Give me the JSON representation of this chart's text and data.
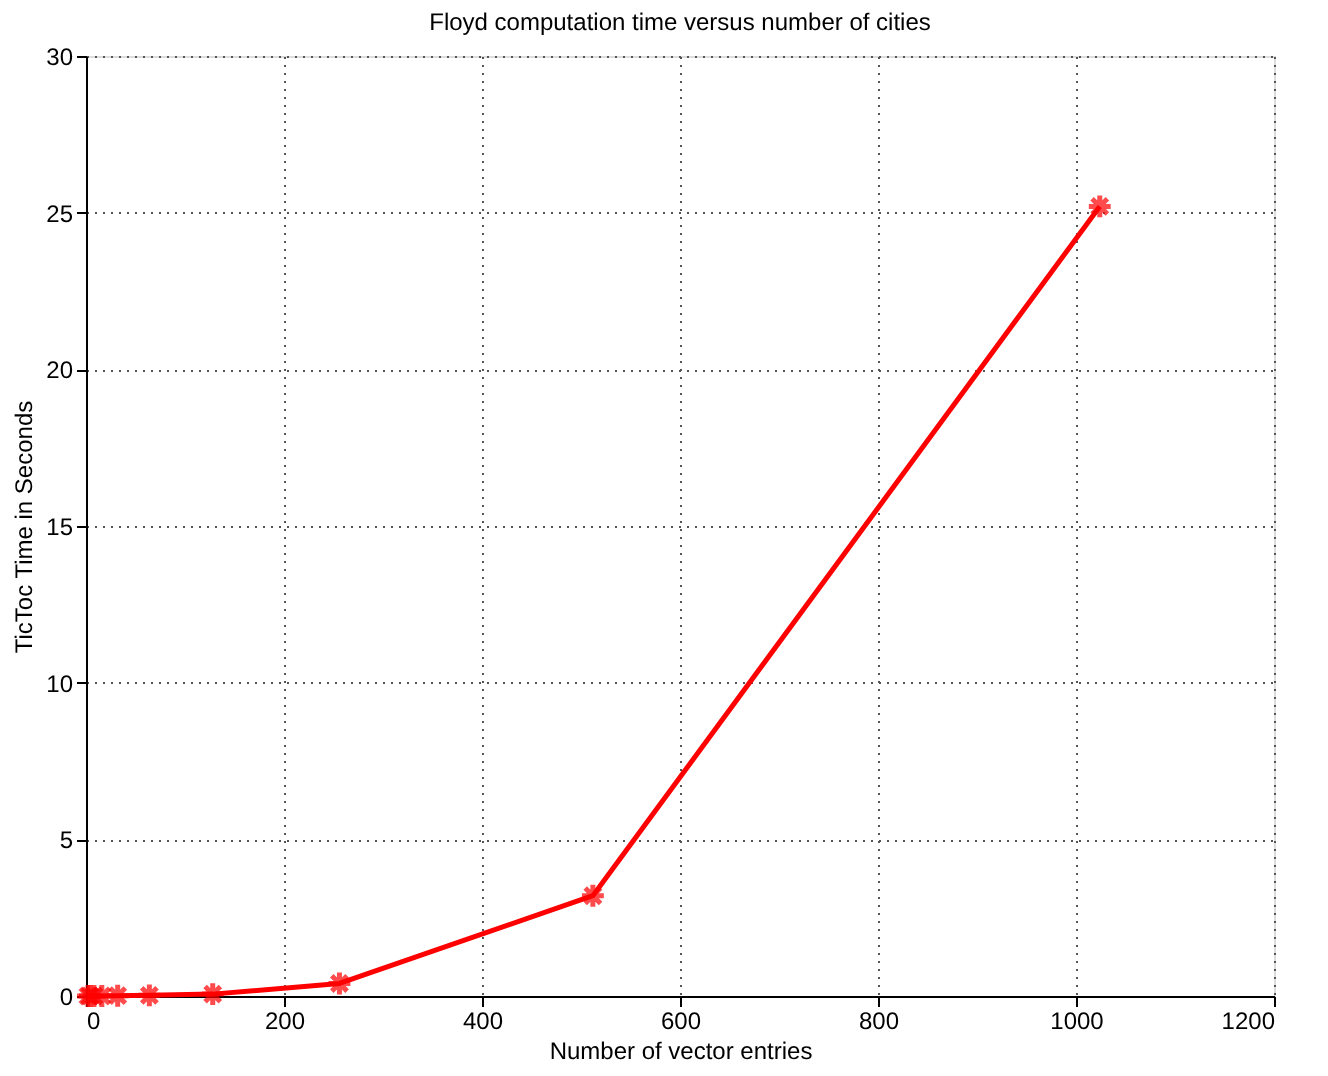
{
  "chart_data": {
    "type": "line",
    "title": "Floyd computation time versus number of cities",
    "xlabel": "Number of vector entries",
    "ylabel": "TicToc Time in Seconds",
    "x": [
      2,
      4,
      8,
      16,
      32,
      64,
      128,
      256,
      512,
      1024
    ],
    "series": [
      {
        "color": "#ff0000",
        "values": [
          0.0,
          0.0,
          0.0,
          0.0,
          0.01,
          0.02,
          0.06,
          0.4,
          3.2,
          25.2
        ]
      }
    ],
    "xlim": [
      0,
      1200
    ],
    "xticks": [
      0,
      200,
      400,
      600,
      800,
      1000,
      1200
    ],
    "ylim": [
      0,
      30
    ],
    "yticks": [
      0,
      5,
      10,
      15,
      20,
      25,
      30
    ],
    "grid": true,
    "marker": "cross",
    "line_style": "solid"
  }
}
